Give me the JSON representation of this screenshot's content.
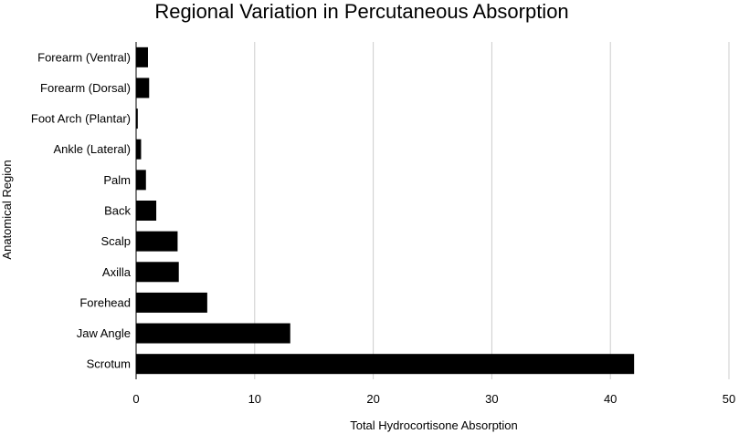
{
  "chart_data": {
    "type": "bar",
    "orientation": "horizontal",
    "title": "Regional Variation in Percutaneous Absorption",
    "xlabel": "Total Hydrocortisone Absorption",
    "ylabel": "Anatomical Region",
    "categories": [
      "Forearm (Ventral)",
      "Forearm (Dorsal)",
      "Foot Arch (Plantar)",
      "Ankle (Lateral)",
      "Palm",
      "Back",
      "Scalp",
      "Axilla",
      "Forehead",
      "Jaw Angle",
      "Scrotum"
    ],
    "values": [
      1.0,
      1.1,
      0.14,
      0.42,
      0.83,
      1.7,
      3.5,
      3.6,
      6.0,
      13.0,
      42.0
    ],
    "xlim": [
      0,
      50
    ],
    "xticks": [
      0,
      10,
      20,
      30,
      40,
      50
    ],
    "grid": true,
    "legend": "none",
    "bar_color": "#000000",
    "grid_color": "#cccccc"
  }
}
